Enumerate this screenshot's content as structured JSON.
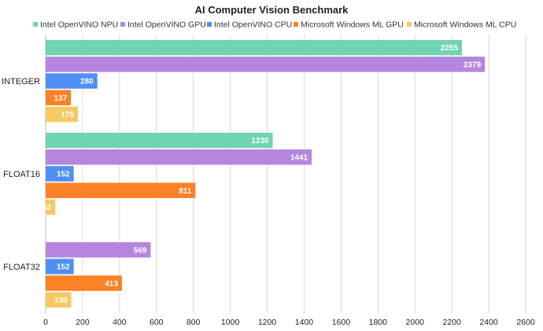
{
  "chart_data": {
    "type": "bar",
    "orientation": "horizontal",
    "title": "AI Computer Vision Benchmark",
    "xlabel": "",
    "ylabel": "",
    "xlim": [
      0,
      2600
    ],
    "x_ticks": [
      0,
      200,
      400,
      600,
      800,
      1000,
      1200,
      1400,
      1600,
      1800,
      2000,
      2200,
      2400,
      2600
    ],
    "grid": true,
    "legend_position": "top",
    "categories": [
      "INTEGER",
      "FLOAT16",
      "FLOAT32"
    ],
    "series": [
      {
        "name": "Intel OpenVINO NPU",
        "color": "#6fd3b4",
        "values": [
          2255,
          1230,
          null
        ]
      },
      {
        "name": "Intel OpenVINO GPU",
        "color": "#b586de",
        "values": [
          2379,
          1441,
          569
        ]
      },
      {
        "name": "Intel OpenVINO CPU",
        "color": "#4f8ff2",
        "values": [
          280,
          152,
          152
        ]
      },
      {
        "name": "Microsoft Windows ML GPU",
        "color": "#fb8127",
        "values": [
          137,
          811,
          413
        ]
      },
      {
        "name": "Microsoft Windows ML CPU",
        "color": "#f6c964",
        "values": [
          175,
          52,
          139
        ]
      }
    ],
    "data_labels": [
      [
        "2255",
        "2379",
        "280",
        "137",
        "175"
      ],
      [
        "1230",
        "1441",
        "152",
        "811",
        "52"
      ],
      [
        "",
        "569",
        "152",
        "413",
        "139"
      ]
    ]
  }
}
